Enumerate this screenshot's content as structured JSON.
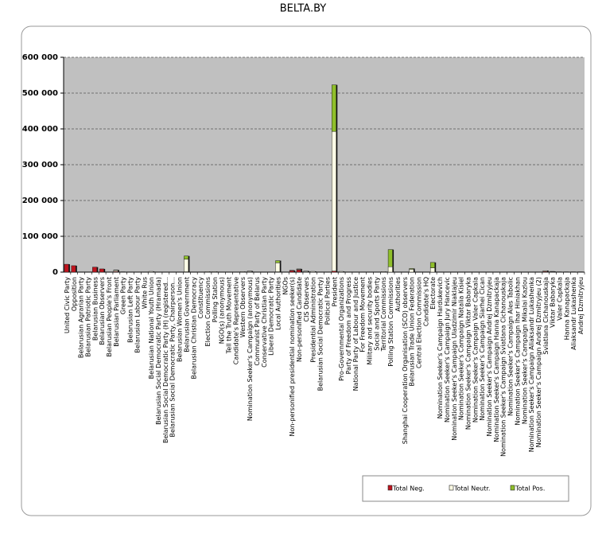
{
  "chart_data": {
    "type": "stacked_bar",
    "title": "BELTA.BY",
    "categories": [
      "United Civic Party",
      "Opposition",
      "Belarusian Agrarian Party",
      "Belarusian Patriotic Party",
      "Belarusian Business",
      "Belarusian Observers",
      "Belarusian People's Front",
      "Belarusian Parliament",
      "Green Party",
      "Belarusian Left Party",
      "Belarusian Labour Party",
      "White Rus",
      "Belarusian National Youth Union",
      "Belarusian Social Democratic Party (Hramada)",
      "Belarusian Social Democratic Party (H) (registered...",
      "Belarusian Social Democratic Party, Chairperson...",
      "Belarusian Women's Union",
      "Belarusian Government",
      "Belarusian Christian Democracy",
      "Constituency",
      "Election Commissions",
      "Polling Station",
      "NGO(s) (anonymous)",
      "Tell the Truth Movement",
      "Candidate's Representative",
      "Western Observers",
      "Nomination Seeker's Campaign (anonymous)",
      "Communist Party of Belarus",
      "Conservative Christian Party",
      "Liberal Democratic Party",
      "Local Authorities",
      "NGOs",
      "Non-personified presidential nomination seeker(s)",
      "Non-personified Candidate",
      "CIS Observers",
      "Presidential Administration",
      "Belarusian Social Democratic Party)",
      "Political Parties",
      "President",
      "Pro-Governmental Organizations",
      "Party of Freedom and Progress",
      "National Party of Labour and Justice",
      "For Freedom Movement",
      "Military and security bodies",
      "Social and Sports Party",
      "Territorial Commissions",
      "Polling Station Commissions",
      "Authorities",
      "Shanghai Cooperation Organisation (SCO) observers",
      "Belarusian Trade Union Federation",
      "Central Election Commission",
      "Candidate's HQ",
      "Electorate",
      "Nomination Seeker's Campaign Hardukevich",
      "Nomination Seeker's Campaign Jury Hancevic",
      "Nomination Seeker's Campaign Uladzimir Niaklajeu",
      "Nomination Seeker's Campaign Natalia Kisiel",
      "Nomination Seeker's Campaign Viktar Babaryka",
      "Nomination Seeker's Campaign Valer Capkala",
      "Nomination Seeker's Campaign Siarhei Cican",
      "Nomination Seeker's Campaign Andrej Dzmitryjeu",
      "Nomination Seeker's Campaign Hanna Kanapackaja",
      "Nomination Seeker's Campaign Sviatlana Cichanouskaja",
      "Nomination Seeker's Campaign Ales Tabolic",
      "Nomination Seeker's Campaign Ihar Hiniakhan",
      "Nomination Seeker's Campaign Mikalai Kazlou",
      "Nomination Seeker's Campaign Aliaksandr Lukashenka",
      "Nomination Seeker's Campaign Andrej Dzmitryjeu (2)",
      "Sviatlana Cichanouskaja",
      "Viktar Babaryka",
      "Valer Capkala",
      "Hanna Kanapackaja",
      "Aliaksandr Lukashenka",
      "Andrej Dzmitryjeu"
    ],
    "series": [
      {
        "name": "Total Neg.",
        "color": "#c0141e",
        "values": [
          22000,
          18000,
          0,
          0,
          14000,
          9000,
          0,
          2000,
          1000,
          0,
          0,
          0,
          0,
          0,
          0,
          0,
          0,
          1000,
          0,
          0,
          0,
          0,
          0,
          0,
          0,
          0,
          1000,
          0,
          0,
          0,
          1000,
          0,
          4000,
          6000,
          1000,
          0,
          0,
          0,
          3000,
          0,
          0,
          0,
          0,
          0,
          0,
          0,
          0,
          0,
          0,
          0,
          0,
          0,
          0,
          0,
          0,
          0,
          0,
          0,
          0,
          0,
          0,
          0,
          0,
          0,
          0,
          0,
          0,
          0,
          2000,
          1000,
          0,
          0,
          0,
          0
        ]
      },
      {
        "name": "Total Neutr.",
        "color": "#fffde6",
        "values": [
          0,
          0,
          0,
          0,
          0,
          0,
          0,
          3000,
          0,
          0,
          0,
          0,
          2000,
          0,
          0,
          0,
          0,
          35000,
          0,
          0,
          1500,
          1500,
          0,
          0,
          0,
          1500,
          2000,
          0,
          0,
          0,
          25000,
          0,
          1000,
          2000,
          2000,
          2000,
          0,
          0,
          390000,
          2000,
          0,
          0,
          0,
          0,
          0,
          1500,
          15000,
          0,
          0,
          8000,
          0,
          0,
          12000,
          0,
          0,
          0,
          0,
          0,
          0,
          0,
          0,
          0,
          0,
          0,
          0,
          0,
          0,
          0,
          2000,
          1000,
          1000,
          1000,
          1000,
          1000
        ]
      },
      {
        "name": "Total Pos.",
        "color": "#8fbf2a",
        "values": [
          0,
          0,
          0,
          0,
          0,
          0,
          0,
          1000,
          0,
          0,
          0,
          0,
          0,
          0,
          0,
          0,
          0,
          9000,
          0,
          0,
          0,
          0,
          0,
          0,
          0,
          0,
          0,
          0,
          0,
          0,
          6000,
          0,
          0,
          1000,
          0,
          0,
          0,
          0,
          130000,
          0,
          0,
          0,
          0,
          0,
          0,
          0,
          48000,
          0,
          0,
          2000,
          0,
          0,
          15000,
          0,
          0,
          0,
          0,
          0,
          0,
          0,
          0,
          0,
          0,
          0,
          0,
          0,
          0,
          0,
          0,
          0,
          0,
          0,
          0,
          0
        ]
      }
    ],
    "ylim": [
      0,
      600000
    ],
    "yticks": [
      0,
      {
        "value": 100000,
        "label": "100 000"
      },
      {
        "value": 200000,
        "label": "200 000"
      },
      {
        "value": 300000,
        "label": "300 000"
      },
      {
        "value": 400000,
        "label": "400 000"
      },
      {
        "value": 500000,
        "label": "500 000"
      },
      {
        "value": 600000,
        "label": "600 000"
      }
    ],
    "grid": true,
    "legend": "bottom-right"
  }
}
